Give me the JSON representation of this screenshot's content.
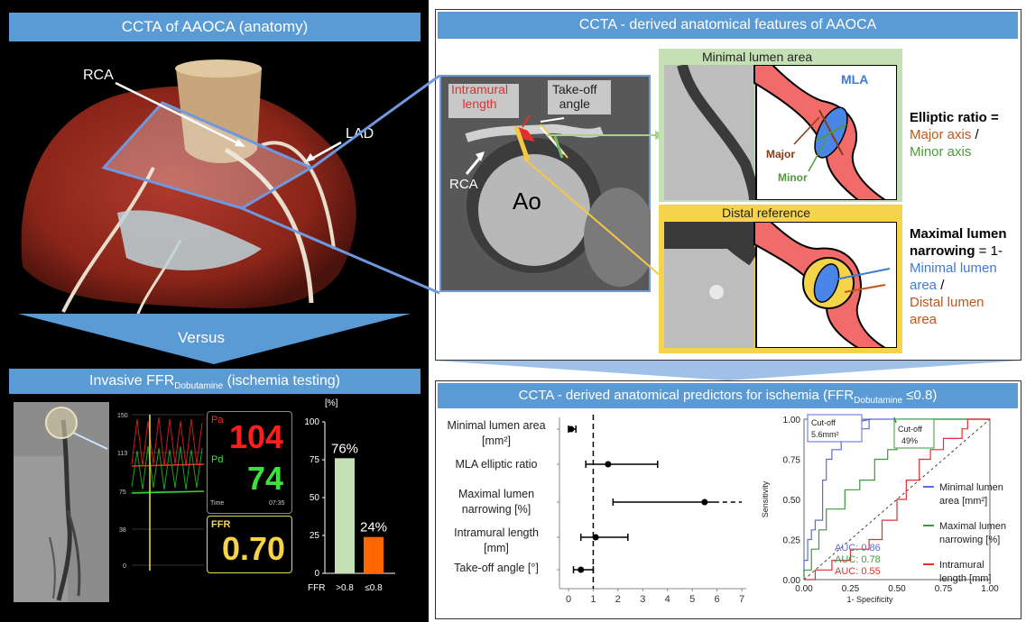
{
  "colors": {
    "header_bg": "#5b9bd5",
    "panel_black": "#000000",
    "accent_blue": "#6f98e0",
    "red_text": "#e03030",
    "orange_text": "#c0561b",
    "green_text": "#4f9a3a",
    "blue_text": "#3f7bd6",
    "bar_green": "#c5e0b4",
    "bar_orange": "#ff6600",
    "yellow": "#f5d34b"
  },
  "left_top": {
    "title": "CCTA of AAOCA (anatomy)",
    "rca_label": "RCA",
    "lad_label": "LAD",
    "versus": "Versus"
  },
  "left_bottom": {
    "title_main": "Invasive FFR",
    "title_sub": "Dobutamine",
    "title_rest": " (ischemia testing)",
    "trace_ticks": [
      "150",
      "113",
      "75",
      "38",
      "0"
    ],
    "pa_label": "Pa",
    "pa_value": "104",
    "pd_label": "Pd",
    "pd_value": "74",
    "time_label": "Time",
    "time_value": "07:35",
    "ffr_label": "FFR",
    "ffr_value": "0.70",
    "bar_unit": "[%]",
    "bar_ticks": [
      "100",
      "75",
      "50",
      "25",
      "0"
    ],
    "bar_x_title": "FFR",
    "bars": [
      {
        "label": ">0.8",
        "value": 76,
        "text": "76%"
      },
      {
        "label": "≤0.8",
        "value": 24,
        "text": "24%"
      }
    ]
  },
  "right_top": {
    "title": "CCTA - derived anatomical features of AAOCA",
    "intramural": "Intramural\nlength",
    "takeoff": "Take-off\nangle",
    "rca": "RCA",
    "ao": "Ao",
    "mla_box_title": "Minimal lumen area",
    "mla": "MLA",
    "major": "Major",
    "minor": "Minor",
    "elliptic_title": "Elliptic ratio =",
    "elliptic_num": "Major axis",
    "elliptic_slash": " /",
    "elliptic_den": "Minor axis",
    "distal_box_title": "Distal reference",
    "narrowing_title": "Maximal lumen",
    "narrowing_title2": "narrowing",
    "narrowing_eq": " = 1-",
    "narrowing_num1": "Minimal lumen",
    "narrowing_num2": "area",
    "narrowing_slash": " /",
    "narrowing_den1": "Distal lumen",
    "narrowing_den2": "area"
  },
  "right_bottom": {
    "title_main": "CCTA - derived anatomical predictors for ischemia (FFR",
    "title_sub": "Dobutamine",
    "title_rest": " ≤0.8)",
    "forest_labels": [
      [
        "Minimal lumen area",
        "[mm²]"
      ],
      [
        "MLA elliptic ratio"
      ],
      [
        "Maximal lumen",
        "narrowing [%]"
      ],
      [
        "Intramural length",
        "[mm]"
      ],
      [
        "Take-off angle [°]"
      ]
    ],
    "forest_ticks": [
      "0",
      "1",
      "2",
      "3",
      "4",
      "5",
      "6",
      "7"
    ],
    "roc_y_title": "Sensitivity",
    "roc_x_title": "1- Specificity",
    "roc_ticks": [
      "0.00",
      "0.25",
      "0.50",
      "0.75",
      "1.00"
    ],
    "cutoff_blue": [
      "Cut-off",
      "5.6mm²"
    ],
    "cutoff_green": [
      "Cut-off",
      "49%"
    ],
    "auc": [
      {
        "text": "AUC: 0.86",
        "color": "#5b6bd8"
      },
      {
        "text": "AUC: 0.78",
        "color": "#3a9a3a"
      },
      {
        "text": "AUC: 0.55",
        "color": "#e03030"
      }
    ],
    "legend": [
      {
        "lines": [
          "Minimal lumen",
          "area [mm²]"
        ],
        "color": "#5b6bd8"
      },
      {
        "lines": [
          "Maximal lumen",
          "narrowing [%]"
        ],
        "color": "#3a9a3a"
      },
      {
        "lines": [
          "Intramural",
          "length [mm]"
        ],
        "color": "#e03030"
      }
    ]
  },
  "chart_data": [
    {
      "type": "bar",
      "categories": [
        ">0.8",
        "≤0.8"
      ],
      "values": [
        76,
        24
      ],
      "xlabel": "FFR",
      "ylabel": "[%]",
      "ylim": [
        0,
        100
      ]
    },
    {
      "type": "scatter",
      "subtype": "forest",
      "categories": [
        "Minimal lumen area [mm²]",
        "MLA elliptic ratio",
        "Maximal lumen narrowing [%]",
        "Intramural length [mm]",
        "Take-off angle [°]"
      ],
      "estimates": [
        0.1,
        1.6,
        5.5,
        1.1,
        0.5
      ],
      "ci_low": [
        0.0,
        0.7,
        1.8,
        0.5,
        0.2
      ],
      "ci_high": [
        0.3,
        3.6,
        7.0,
        2.4,
        1.0
      ],
      "ci_high_extends": [
        false,
        false,
        true,
        false,
        false
      ],
      "reference_line": 1,
      "xlim": [
        0,
        7
      ]
    },
    {
      "type": "line",
      "subtype": "roc",
      "xlabel": "1- Specificity",
      "ylabel": "Sensitivity",
      "xlim": [
        0,
        1
      ],
      "ylim": [
        0,
        1
      ],
      "series": [
        {
          "name": "Minimal lumen area [mm²]",
          "auc": 0.86,
          "points": [
            [
              0,
              0
            ],
            [
              0,
              0.12
            ],
            [
              0.02,
              0.12
            ],
            [
              0.02,
              0.25
            ],
            [
              0.04,
              0.25
            ],
            [
              0.04,
              0.31
            ],
            [
              0.06,
              0.31
            ],
            [
              0.06,
              0.37
            ],
            [
              0.1,
              0.37
            ],
            [
              0.1,
              0.62
            ],
            [
              0.12,
              0.62
            ],
            [
              0.12,
              0.75
            ],
            [
              0.15,
              0.75
            ],
            [
              0.15,
              0.81
            ],
            [
              0.2,
              0.81
            ],
            [
              0.2,
              0.88
            ],
            [
              0.27,
              0.88
            ],
            [
              0.27,
              0.94
            ],
            [
              0.35,
              0.94
            ],
            [
              0.35,
              1.0
            ],
            [
              1,
              1
            ]
          ]
        },
        {
          "name": "Maximal lumen narrowing [%]",
          "auc": 0.78,
          "points": [
            [
              0,
              0
            ],
            [
              0,
              0.06
            ],
            [
              0.04,
              0.06
            ],
            [
              0.04,
              0.19
            ],
            [
              0.08,
              0.19
            ],
            [
              0.08,
              0.31
            ],
            [
              0.12,
              0.31
            ],
            [
              0.12,
              0.44
            ],
            [
              0.22,
              0.44
            ],
            [
              0.22,
              0.56
            ],
            [
              0.3,
              0.56
            ],
            [
              0.3,
              0.62
            ],
            [
              0.38,
              0.62
            ],
            [
              0.38,
              0.75
            ],
            [
              0.45,
              0.75
            ],
            [
              0.45,
              0.81
            ],
            [
              0.5,
              0.81
            ],
            [
              0.5,
              0.94
            ],
            [
              0.52,
              0.94
            ],
            [
              0.52,
              1.0
            ],
            [
              1,
              1
            ]
          ]
        },
        {
          "name": "Intramural length [mm]",
          "auc": 0.55,
          "points": [
            [
              0,
              0
            ],
            [
              0.06,
              0
            ],
            [
              0.06,
              0.06
            ],
            [
              0.15,
              0.06
            ],
            [
              0.15,
              0.12
            ],
            [
              0.25,
              0.12
            ],
            [
              0.25,
              0.19
            ],
            [
              0.35,
              0.19
            ],
            [
              0.35,
              0.25
            ],
            [
              0.42,
              0.25
            ],
            [
              0.42,
              0.37
            ],
            [
              0.5,
              0.37
            ],
            [
              0.5,
              0.5
            ],
            [
              0.55,
              0.5
            ],
            [
              0.55,
              0.62
            ],
            [
              0.62,
              0.62
            ],
            [
              0.62,
              0.75
            ],
            [
              0.68,
              0.75
            ],
            [
              0.68,
              0.81
            ],
            [
              0.75,
              0.81
            ],
            [
              0.75,
              0.88
            ],
            [
              0.85,
              0.88
            ],
            [
              0.85,
              0.94
            ],
            [
              0.88,
              0.94
            ],
            [
              0.88,
              1.0
            ],
            [
              1,
              1
            ]
          ]
        }
      ]
    }
  ]
}
